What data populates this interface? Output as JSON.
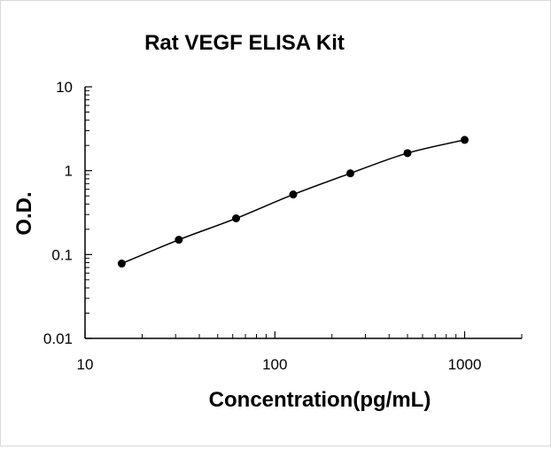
{
  "chart_data": {
    "type": "scatter",
    "title": "Rat VEGF ELISA Kit",
    "xlabel": "Concentration(pg/mL)",
    "ylabel": "O.D.",
    "x_scale": "log",
    "y_scale": "log",
    "xlim": [
      10,
      2000
    ],
    "ylim": [
      0.01,
      10
    ],
    "x_tick_labels": [
      "10",
      "100",
      "1000"
    ],
    "y_tick_labels": [
      "0.01",
      "0.1",
      "1",
      "10"
    ],
    "grid": false,
    "legend": "none",
    "marker_color": "#000000",
    "line_color": "#000000",
    "series": [
      {
        "x": [
          15.6,
          31.2,
          62.5,
          125,
          250,
          500,
          1000
        ],
        "y": [
          0.078,
          0.15,
          0.27,
          0.52,
          0.93,
          1.62,
          2.33
        ]
      }
    ]
  }
}
